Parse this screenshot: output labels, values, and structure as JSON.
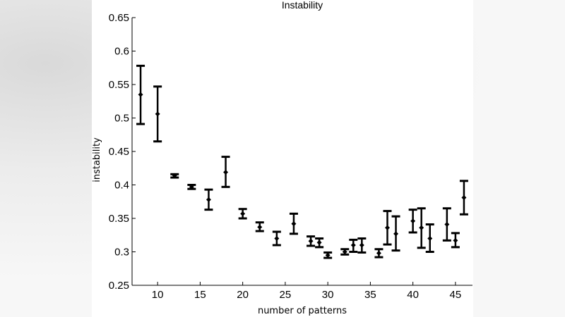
{
  "chart_data": {
    "type": "scatter",
    "title": "Instability",
    "xlabel": "number of patterns",
    "ylabel": "instability",
    "xlim": [
      7,
      47
    ],
    "ylim": [
      0.25,
      0.65
    ],
    "xticks": [
      10,
      15,
      20,
      25,
      30,
      35,
      40,
      45
    ],
    "yticks": [
      0.25,
      0.3,
      0.35,
      0.4,
      0.45,
      0.5,
      0.55,
      0.6,
      0.65
    ],
    "ytick_labels": [
      "0.25",
      "0.3",
      "0.35",
      "0.4",
      "0.45",
      "0.5",
      "0.55",
      "0.6",
      "0.65"
    ],
    "grid": false,
    "series": [
      {
        "name": "instability",
        "color": "#000000",
        "points": [
          {
            "x": 8,
            "y": 0.535,
            "lo": 0.491,
            "hi": 0.578
          },
          {
            "x": 10,
            "y": 0.506,
            "lo": 0.465,
            "hi": 0.547
          },
          {
            "x": 12,
            "y": 0.414,
            "lo": 0.411,
            "hi": 0.416
          },
          {
            "x": 14,
            "y": 0.397,
            "lo": 0.394,
            "hi": 0.4
          },
          {
            "x": 16,
            "y": 0.378,
            "lo": 0.363,
            "hi": 0.393
          },
          {
            "x": 18,
            "y": 0.419,
            "lo": 0.397,
            "hi": 0.442
          },
          {
            "x": 20,
            "y": 0.357,
            "lo": 0.35,
            "hi": 0.364
          },
          {
            "x": 22,
            "y": 0.337,
            "lo": 0.331,
            "hi": 0.344
          },
          {
            "x": 24,
            "y": 0.32,
            "lo": 0.31,
            "hi": 0.33
          },
          {
            "x": 26,
            "y": 0.342,
            "lo": 0.327,
            "hi": 0.357
          },
          {
            "x": 28,
            "y": 0.316,
            "lo": 0.309,
            "hi": 0.323
          },
          {
            "x": 29,
            "y": 0.314,
            "lo": 0.307,
            "hi": 0.32
          },
          {
            "x": 30,
            "y": 0.295,
            "lo": 0.291,
            "hi": 0.299
          },
          {
            "x": 32,
            "y": 0.3,
            "lo": 0.296,
            "hi": 0.304
          },
          {
            "x": 33,
            "y": 0.31,
            "lo": 0.3,
            "hi": 0.318
          },
          {
            "x": 34,
            "y": 0.31,
            "lo": 0.299,
            "hi": 0.32
          },
          {
            "x": 36,
            "y": 0.298,
            "lo": 0.292,
            "hi": 0.304
          },
          {
            "x": 37,
            "y": 0.336,
            "lo": 0.311,
            "hi": 0.361
          },
          {
            "x": 38,
            "y": 0.327,
            "lo": 0.302,
            "hi": 0.353
          },
          {
            "x": 40,
            "y": 0.346,
            "lo": 0.329,
            "hi": 0.363
          },
          {
            "x": 41,
            "y": 0.336,
            "lo": 0.306,
            "hi": 0.365
          },
          {
            "x": 42,
            "y": 0.32,
            "lo": 0.3,
            "hi": 0.341
          },
          {
            "x": 44,
            "y": 0.341,
            "lo": 0.317,
            "hi": 0.365
          },
          {
            "x": 45,
            "y": 0.317,
            "lo": 0.307,
            "hi": 0.328
          },
          {
            "x": 46,
            "y": 0.381,
            "lo": 0.356,
            "hi": 0.406
          }
        ]
      }
    ]
  }
}
